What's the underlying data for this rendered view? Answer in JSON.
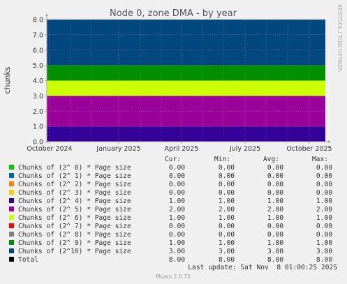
{
  "page": {
    "watermark": "RRDTOOL / TOBI OETIKER",
    "footer": "Munin 2.0.73",
    "last_update": "Last update: Sat Nov  8 01:00:25 2025"
  },
  "chart_data": {
    "type": "area",
    "stacked": true,
    "title": "Node 0, zone DMA - by year",
    "ylabel": "chunks",
    "xlabel": "",
    "ylim": [
      0,
      8
    ],
    "yticks": [
      "0.0",
      "1.0",
      "2.0",
      "3.0",
      "4.0",
      "5.0",
      "6.0",
      "7.0",
      "8.0"
    ],
    "xticks": [
      "October 2024",
      "January 2025",
      "April 2025",
      "July 2025",
      "October 2025"
    ],
    "grid": true,
    "legend_columns": [
      "Cur:",
      "Min:",
      "Avg:",
      "Max:"
    ],
    "series": [
      {
        "name": "Chunks of (2^ 0) * Page size",
        "color": "#00cc00",
        "cur": "0.00",
        "min": "0.00",
        "avg": "0.00",
        "max": "0.00",
        "value": 0
      },
      {
        "name": "Chunks of (2^ 1) * Page size",
        "color": "#0066b3",
        "cur": "0.00",
        "min": "0.00",
        "avg": "0.00",
        "max": "0.00",
        "value": 0
      },
      {
        "name": "Chunks of (2^ 2) * Page size",
        "color": "#ff8000",
        "cur": "0.00",
        "min": "0.00",
        "avg": "0.00",
        "max": "0.00",
        "value": 0
      },
      {
        "name": "Chunks of (2^ 3) * Page size",
        "color": "#ffcc00",
        "cur": "0.00",
        "min": "0.00",
        "avg": "0.00",
        "max": "0.00",
        "value": 0
      },
      {
        "name": "Chunks of (2^ 4) * Page size",
        "color": "#330099",
        "cur": "1.00",
        "min": "1.00",
        "avg": "1.00",
        "max": "1.00",
        "value": 1
      },
      {
        "name": "Chunks of (2^ 5) * Page size",
        "color": "#990099",
        "cur": "2.00",
        "min": "2.00",
        "avg": "2.00",
        "max": "2.00",
        "value": 2
      },
      {
        "name": "Chunks of (2^ 6) * Page size",
        "color": "#ccff00",
        "cur": "1.00",
        "min": "1.00",
        "avg": "1.00",
        "max": "1.00",
        "value": 1
      },
      {
        "name": "Chunks of (2^ 7) * Page size",
        "color": "#ff0000",
        "cur": "0.00",
        "min": "0.00",
        "avg": "0.00",
        "max": "0.00",
        "value": 0
      },
      {
        "name": "Chunks of (2^ 8) * Page size",
        "color": "#808080",
        "cur": "0.00",
        "min": "0.00",
        "avg": "0.00",
        "max": "0.00",
        "value": 0
      },
      {
        "name": "Chunks of (2^ 9) * Page size",
        "color": "#008f00",
        "cur": "1.00",
        "min": "1.00",
        "avg": "1.00",
        "max": "1.00",
        "value": 1
      },
      {
        "name": "Chunks of (2^10) * Page size",
        "color": "#00487d",
        "cur": "3.00",
        "min": "3.00",
        "avg": "3.00",
        "max": "3.00",
        "value": 3
      }
    ],
    "total": {
      "name": "Total",
      "color": "#000000",
      "cur": "8.00",
      "min": "8.00",
      "avg": "8.00",
      "max": "8.00"
    }
  }
}
